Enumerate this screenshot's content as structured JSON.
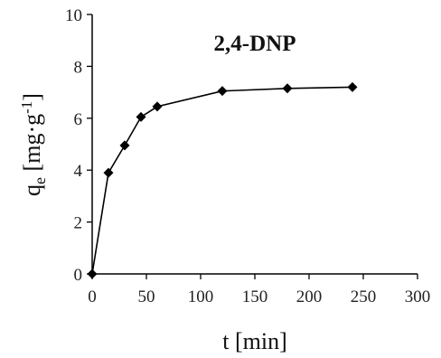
{
  "chart_data": {
    "type": "line",
    "title": "2,4-DNP",
    "xlabel": "t [min]",
    "ylabel": {
      "base": "q",
      "subscript": "e",
      "unit_prefix": " [mg·g",
      "unit_exponent": "-1",
      "unit_suffix": "]"
    },
    "xlim": [
      0,
      300
    ],
    "ylim": [
      0,
      10
    ],
    "x_ticks": [
      0,
      50,
      100,
      150,
      200,
      250,
      300
    ],
    "y_ticks": [
      0,
      2,
      4,
      6,
      8,
      10
    ],
    "grid": false,
    "legend": "none",
    "marker": "diamond",
    "color": "#000000",
    "series": [
      {
        "x": [
          0,
          15,
          30,
          45,
          60,
          120,
          180,
          240
        ],
        "y": [
          0,
          3.9,
          4.95,
          6.05,
          6.45,
          7.05,
          7.15,
          7.2
        ]
      }
    ]
  }
}
